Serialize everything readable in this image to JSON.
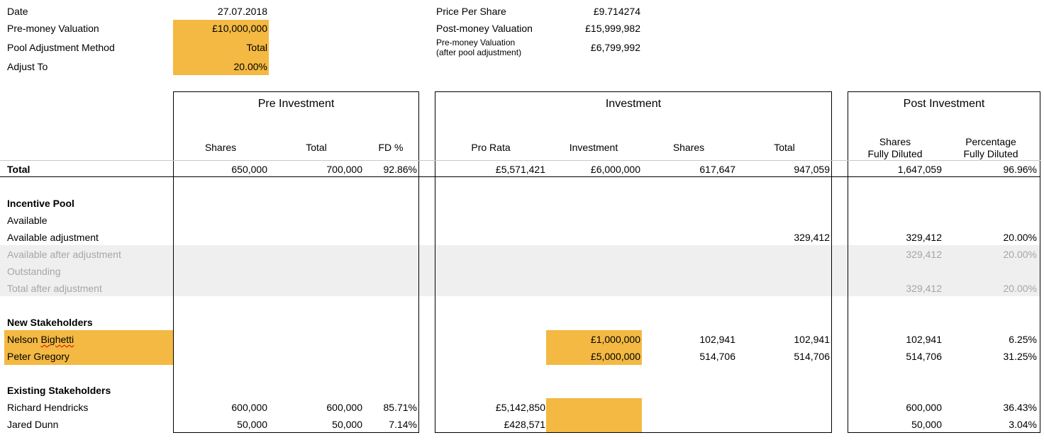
{
  "summary": {
    "date_label": "Date",
    "date_value": "27.07.2018",
    "premoney_label": "Pre-money Valuation",
    "premoney_value": "£10,000,000",
    "pool_method_label": "Pool Adjustment Method",
    "pool_method_value": "Total",
    "adjust_to_label": "Adjust To",
    "adjust_to_value": "20.00%",
    "price_label": "Price Per Share",
    "price_value": "£9.714274",
    "postmoney_label": "Post-money Valuation",
    "postmoney_value": "£15,999,982",
    "premoney_after_label_1": "Pre-money Valuation",
    "premoney_after_label_2": "(after pool adjustment)",
    "premoney_after_value": "£6,799,992"
  },
  "sections": {
    "pre": "Pre Investment",
    "inv": "Investment",
    "post": "Post Investment"
  },
  "headers": {
    "pre_shares": "Shares",
    "pre_total": "Total",
    "pre_fd": "FD %",
    "inv_prorata": "Pro Rata",
    "inv_investment": "Investment",
    "inv_shares": "Shares",
    "inv_total": "Total",
    "post_shares_1": "Shares",
    "post_shares_2": "Fully Diluted",
    "post_pct_1": "Percentage",
    "post_pct_2": "Fully Diluted"
  },
  "total_row": {
    "label": "Total",
    "pre_shares": "650,000",
    "pre_total": "700,000",
    "pre_fd": "92.86%",
    "inv_prorata": "£5,571,421",
    "inv_investment": "£6,000,000",
    "inv_shares": "617,647",
    "inv_total": "947,059",
    "post_shares": "1,647,059",
    "post_pct": "96.96%"
  },
  "incentive": {
    "title": "Incentive Pool",
    "available": "Available",
    "available_adj": "Available adjustment",
    "available_adj_inv_total": "329,412",
    "available_adj_post_shares": "329,412",
    "available_adj_post_pct": "20.00%",
    "after_adj": "Available after adjustment",
    "after_adj_post_shares": "329,412",
    "after_adj_post_pct": "20.00%",
    "outstanding": "Outstanding",
    "total_after": "Total after adjustment",
    "total_after_post_shares": "329,412",
    "total_after_post_pct": "20.00%"
  },
  "new_stakeholders": {
    "title": "New Stakeholders",
    "rows": [
      {
        "name": "Nelson Bighetti",
        "investment": "£1,000,000",
        "shares": "102,941",
        "total": "102,941",
        "post_shares": "102,941",
        "post_pct": "6.25%"
      },
      {
        "name": "Peter Gregory",
        "investment": "£5,000,000",
        "shares": "514,706",
        "total": "514,706",
        "post_shares": "514,706",
        "post_pct": "31.25%"
      }
    ]
  },
  "existing_stakeholders": {
    "title": "Existing Stakeholders",
    "rows": [
      {
        "name": "Richard Hendricks",
        "pre_shares": "600,000",
        "pre_total": "600,000",
        "pre_fd": "85.71%",
        "prorata": "£5,142,850",
        "post_shares": "600,000",
        "post_pct": "36.43%"
      },
      {
        "name": "Jared Dunn",
        "pre_shares": "50,000",
        "pre_total": "50,000",
        "pre_fd": "7.14%",
        "prorata": "£428,571",
        "post_shares": "50,000",
        "post_pct": "3.04%"
      }
    ]
  },
  "colors": {
    "input_highlight": "#f4b942",
    "disabled_band": "#efefef",
    "disabled_text": "#a6a6a6"
  }
}
